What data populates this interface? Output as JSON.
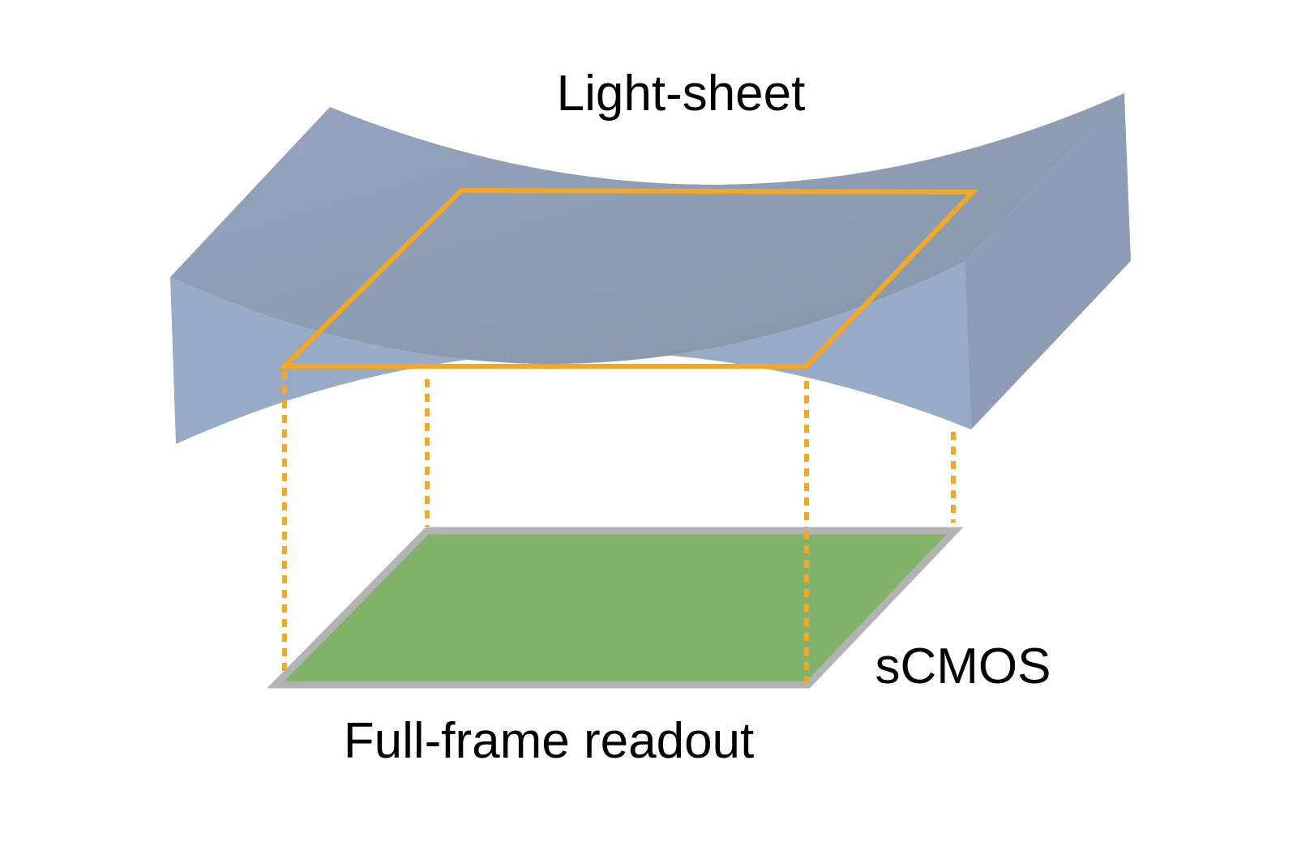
{
  "labels": {
    "light_sheet": "Light-sheet",
    "sensor": "sCMOS",
    "readout_mode": "Full-frame readout"
  },
  "colors": {
    "sheet_top": "#8fa1ba",
    "sheet_front": "#98abc6",
    "sheet_side": "#8c9db5",
    "frame_outline": "#f5a623",
    "sensor_fill": "#82b36a",
    "sensor_border": "#b3b3b3",
    "text": "#000000"
  }
}
